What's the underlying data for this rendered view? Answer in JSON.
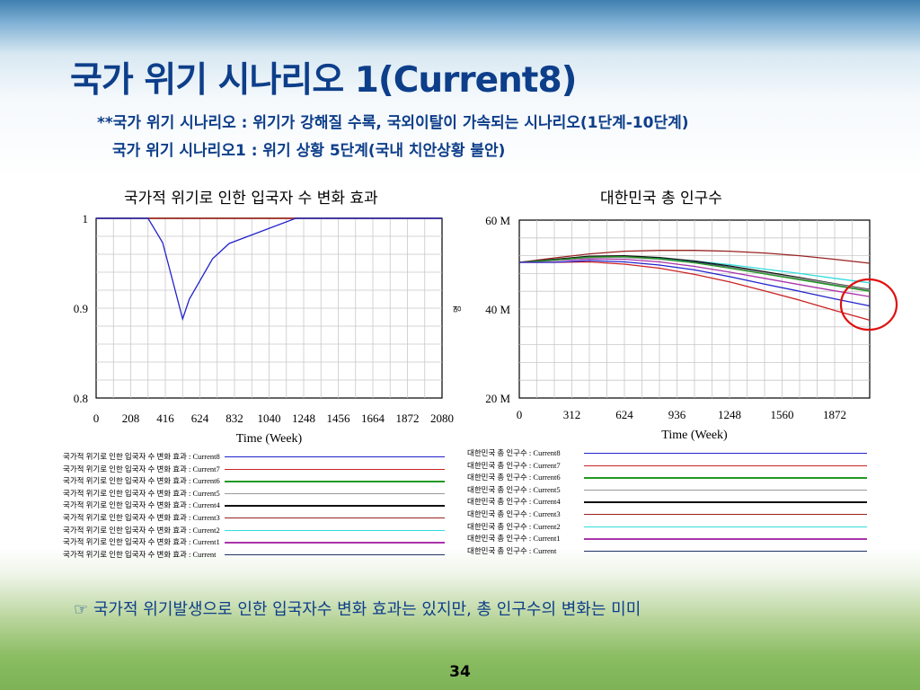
{
  "slide": {
    "title": "국가 위기 시나리오 1(Current8)",
    "subtitle1": "**국가 위기 시나리오  : 위기가 강해질 수록, 국외이탈이 가속되는 시나리오(1단계-10단계)",
    "subtitle2": "국가 위기 시나리오1 : 위기 상황 5단계(국내 치안상황 불안)",
    "note": "☞ 국가적 위기발생으로 인한 입국자수 변화 효과는 있지만, 총 인구수의 변화는 미미",
    "page_number": "34"
  },
  "chart_data": [
    {
      "type": "line",
      "title": "국가적 위기로 인한 입국자 수 변화 효과",
      "xlabel": "Time (Week)",
      "ylabel": "",
      "xlim": [
        0,
        2080
      ],
      "ylim": [
        0.8,
        1.0
      ],
      "x_ticks": [
        "0",
        "208",
        "416",
        "624",
        "832",
        "1040",
        "1248",
        "1456",
        "1664",
        "1872",
        "2080"
      ],
      "y_ticks": [
        "1",
        "0.9",
        "0.8"
      ],
      "grid": true,
      "series": [
        {
          "name": "국가적 위기로 인한 입국자 수 변화 효과 : Current8",
          "color": "#2222cc",
          "points": [
            [
              0,
              1.0
            ],
            [
              312,
              1.0
            ],
            [
              400,
              0.973
            ],
            [
              440,
              0.945
            ],
            [
              520,
              0.888
            ],
            [
              560,
              0.91
            ],
            [
              700,
              0.955
            ],
            [
              800,
              0.972
            ],
            [
              1200,
              1.0
            ],
            [
              2080,
              1.0
            ]
          ]
        },
        {
          "name": "국가적 위기로 인한 입국자 수 변화 효과 : Current7",
          "color": "#cc2222",
          "points": [
            [
              0,
              1.0
            ],
            [
              2080,
              1.0
            ]
          ]
        },
        {
          "name": "국가적 위기로 인한 입국자 수 변화 효과 : Current6",
          "color": "#229922",
          "points": [
            [
              0,
              1.0
            ],
            [
              2080,
              1.0
            ]
          ]
        },
        {
          "name": "국가적 위기로 인한 입국자 수 변화 효과 : Current5",
          "color": "#999999",
          "points": [
            [
              0,
              1.0
            ],
            [
              2080,
              1.0
            ]
          ]
        },
        {
          "name": "국가적 위기로 인한 입국자 수 변화 효과 : Current4",
          "color": "#111111",
          "points": [
            [
              0,
              1.0
            ],
            [
              2080,
              1.0
            ]
          ]
        },
        {
          "name": "국가적 위기로 인한 입국자 수 변화 효과 : Current3",
          "color": "#992222",
          "points": [
            [
              0,
              1.0
            ],
            [
              2080,
              1.0
            ]
          ]
        },
        {
          "name": "국가적 위기로 인한 입국자 수 변화 효과 : Current2",
          "color": "#33dddd",
          "points": [
            [
              0,
              1.0
            ],
            [
              2080,
              1.0
            ]
          ]
        },
        {
          "name": "국가적 위기로 인한 입국자 수 변화 효과 : Current1",
          "color": "#aa33aa",
          "points": [
            [
              0,
              1.0
            ],
            [
              2080,
              1.0
            ]
          ]
        },
        {
          "name": "국가적 위기로 인한 입국자 수 변화 효과 : Current",
          "color": "#223366",
          "points": [
            [
              0,
              1.0
            ],
            [
              2080,
              1.0
            ]
          ]
        }
      ]
    },
    {
      "type": "line",
      "title": "대한민국 총 인구수",
      "xlabel": "Time (Week)",
      "ylabel": "명",
      "xlim": [
        0,
        2080
      ],
      "ylim": [
        20,
        60
      ],
      "x_ticks": [
        "0",
        "312",
        "624",
        "936",
        "1248",
        "1560",
        "1872"
      ],
      "y_ticks": [
        "60 M",
        "40 M",
        "20 M"
      ],
      "grid": true,
      "annotation": "red circle around series end values",
      "series": [
        {
          "name": "대한민국 총 인구수 : Current8",
          "color": "#2222cc",
          "points": [
            [
              0,
              50.5
            ],
            [
              208,
              50.5
            ],
            [
              416,
              50.9
            ],
            [
              624,
              50.6
            ],
            [
              832,
              49.9
            ],
            [
              1040,
              48.8
            ],
            [
              1248,
              47.3
            ],
            [
              1456,
              45.6
            ],
            [
              1664,
              44.0
            ],
            [
              1872,
              42.3
            ],
            [
              2080,
              40.7
            ]
          ]
        },
        {
          "name": "대한민국 총 인구수 : Current7",
          "color": "#cc2222",
          "points": [
            [
              0,
              50.5
            ],
            [
              208,
              50.5
            ],
            [
              416,
              50.6
            ],
            [
              624,
              50.1
            ],
            [
              832,
              49.2
            ],
            [
              1040,
              47.8
            ],
            [
              1248,
              46.1
            ],
            [
              1456,
              44.1
            ],
            [
              1664,
              42.0
            ],
            [
              1872,
              39.7
            ],
            [
              2080,
              37.5
            ]
          ]
        },
        {
          "name": "대한민국 총 인구수 : Current6",
          "color": "#229922",
          "points": [
            [
              0,
              50.5
            ],
            [
              208,
              51.0
            ],
            [
              416,
              51.7
            ],
            [
              624,
              51.8
            ],
            [
              832,
              51.3
            ],
            [
              1040,
              50.4
            ],
            [
              1248,
              49.2
            ],
            [
              1456,
              47.9
            ],
            [
              1664,
              46.6
            ],
            [
              1872,
              45.3
            ],
            [
              2080,
              44.0
            ]
          ]
        },
        {
          "name": "대한민국 총 인구수 : Current5",
          "color": "#999999",
          "points": [
            [
              0,
              50.5
            ],
            [
              208,
              51.0
            ],
            [
              416,
              51.6
            ],
            [
              624,
              51.6
            ],
            [
              832,
              51.2
            ],
            [
              1040,
              50.4
            ],
            [
              1248,
              49.3
            ],
            [
              1456,
              48.1
            ],
            [
              1664,
              46.9
            ],
            [
              1872,
              45.6
            ],
            [
              2080,
              44.3
            ]
          ]
        },
        {
          "name": "대한민국 총 인구수 : Current4",
          "color": "#111111",
          "points": [
            [
              0,
              50.5
            ],
            [
              208,
              51.2
            ],
            [
              416,
              51.9
            ],
            [
              624,
              52.0
            ],
            [
              832,
              51.6
            ],
            [
              1040,
              50.8
            ],
            [
              1248,
              49.7
            ],
            [
              1456,
              48.4
            ],
            [
              1664,
              47.1
            ],
            [
              1872,
              45.7
            ],
            [
              2080,
              44.4
            ]
          ]
        },
        {
          "name": "대한민국 총 인구수 : Current3",
          "color": "#992222",
          "points": [
            [
              0,
              50.5
            ],
            [
              208,
              51.5
            ],
            [
              416,
              52.4
            ],
            [
              624,
              53.0
            ],
            [
              832,
              53.2
            ],
            [
              1040,
              53.2
            ],
            [
              1248,
              53.0
            ],
            [
              1456,
              52.6
            ],
            [
              1664,
              52.0
            ],
            [
              1872,
              51.2
            ],
            [
              2080,
              50.3
            ]
          ]
        },
        {
          "name": "대한민국 총 인구수 : Current2",
          "color": "#33dddd",
          "points": [
            [
              0,
              50.5
            ],
            [
              208,
              51.0
            ],
            [
              416,
              51.6
            ],
            [
              624,
              51.7
            ],
            [
              832,
              51.4
            ],
            [
              1040,
              50.8
            ],
            [
              1248,
              50.0
            ],
            [
              1456,
              49.0
            ],
            [
              1664,
              48.0
            ],
            [
              1872,
              46.9
            ],
            [
              2080,
              45.9
            ]
          ]
        },
        {
          "name": "대한민국 총 인구수 : Current1",
          "color": "#aa33aa",
          "points": [
            [
              0,
              50.5
            ],
            [
              208,
              50.9
            ],
            [
              416,
              51.3
            ],
            [
              624,
              51.2
            ],
            [
              832,
              50.6
            ],
            [
              1040,
              49.6
            ],
            [
              1248,
              48.3
            ],
            [
              1456,
              46.9
            ],
            [
              1664,
              45.5
            ],
            [
              1872,
              44.1
            ],
            [
              2080,
              42.8
            ]
          ]
        },
        {
          "name": "대한민국 총 인구수 : Current",
          "color": "#223366",
          "points": [
            [
              0,
              50.5
            ],
            [
              208,
              51.1
            ],
            [
              416,
              51.8
            ],
            [
              624,
              51.9
            ],
            [
              832,
              51.5
            ],
            [
              1040,
              50.6
            ],
            [
              1248,
              49.4
            ],
            [
              1456,
              48.1
            ],
            [
              1664,
              46.8
            ],
            [
              1872,
              45.4
            ],
            [
              2080,
              44.1
            ]
          ]
        }
      ]
    }
  ]
}
